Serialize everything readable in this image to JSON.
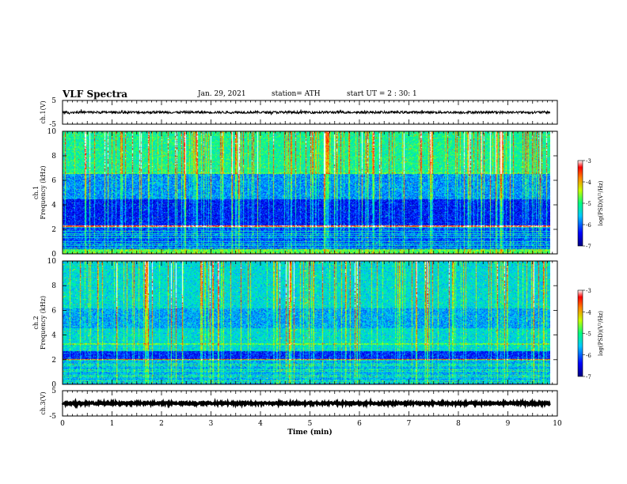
{
  "header": {
    "title": "VLF Spectra",
    "date": "Jan. 29, 2021",
    "station": "station= ATH",
    "start_ut": "start  UT =  2 : 30: 1"
  },
  "chart_data": [
    {
      "type": "line",
      "panel": "ch1-waveform",
      "ylabel": "ch.1(V)",
      "ylim": [
        -5,
        5
      ],
      "yticks": [
        "5",
        "-5"
      ],
      "xlim": [
        0,
        10
      ],
      "data_xrange": [
        0,
        9.85
      ],
      "baseline": 0.0,
      "amplitude": 0.5,
      "color": "#000000"
    },
    {
      "type": "heatmap",
      "panel": "ch1-spectrogram",
      "ylabel_line1": "ch.1",
      "ylabel_line2": "Frequency (kHz)",
      "ylim": [
        0,
        10
      ],
      "yticks": [
        "0",
        "2",
        "4",
        "6",
        "8",
        "10"
      ],
      "xlim": [
        0,
        10
      ],
      "data_xrange": [
        0,
        9.85
      ],
      "colorbar": {
        "label": "log(PSD)(V²/Hz)",
        "range": [
          -7,
          -3
        ],
        "ticks": [
          "-3",
          "-4",
          "-5",
          "-6",
          "-7"
        ]
      }
    },
    {
      "type": "heatmap",
      "panel": "ch2-spectrogram",
      "ylabel_line1": "ch.2",
      "ylabel_line2": "Frequency (kHz)",
      "ylim": [
        0,
        10
      ],
      "yticks": [
        "0",
        "2",
        "4",
        "6",
        "8",
        "10"
      ],
      "xlim": [
        0,
        10
      ],
      "data_xrange": [
        0,
        9.85
      ],
      "colorbar": {
        "label": "log(PSD)(V²/Hz)",
        "range": [
          -7,
          -3
        ],
        "ticks": [
          "-3",
          "-4",
          "-5",
          "-6",
          "-7"
        ]
      }
    },
    {
      "type": "line",
      "panel": "ch3-waveform",
      "ylabel": "ch.3(V)",
      "ylim": [
        -5,
        5
      ],
      "yticks": [
        "5",
        "-5"
      ],
      "xlim": [
        0,
        10
      ],
      "data_xrange": [
        0,
        9.85
      ],
      "baseline": 0.0,
      "amplitude": 0.35,
      "color": "#000000"
    }
  ],
  "xaxis": {
    "label": "Time  (min)",
    "ticks": [
      "0",
      "1",
      "2",
      "3",
      "4",
      "5",
      "6",
      "7",
      "8",
      "9",
      "10"
    ]
  }
}
